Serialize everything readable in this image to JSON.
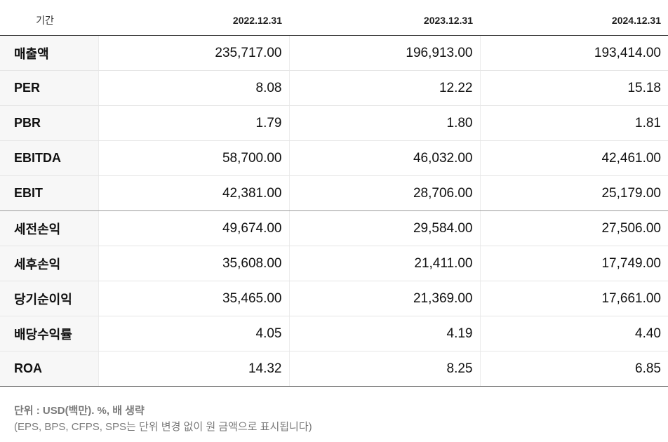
{
  "table": {
    "headers": [
      "기간",
      "2022.12.31",
      "2023.12.31",
      "2024.12.31"
    ],
    "rows": [
      {
        "label": "매출액",
        "values": [
          "235,717.00",
          "196,913.00",
          "193,414.00"
        ]
      },
      {
        "label": "PER",
        "values": [
          "8.08",
          "12.22",
          "15.18"
        ]
      },
      {
        "label": "PBR",
        "values": [
          "1.79",
          "1.80",
          "1.81"
        ]
      },
      {
        "label": "EBITDA",
        "values": [
          "58,700.00",
          "46,032.00",
          "42,461.00"
        ]
      },
      {
        "label": "EBIT",
        "values": [
          "42,381.00",
          "28,706.00",
          "25,179.00"
        ]
      },
      {
        "label": "세전손익",
        "values": [
          "49,674.00",
          "29,584.00",
          "27,506.00"
        ]
      },
      {
        "label": "세후손익",
        "values": [
          "35,608.00",
          "21,411.00",
          "17,749.00"
        ]
      },
      {
        "label": "당기순이익",
        "values": [
          "35,465.00",
          "21,369.00",
          "17,661.00"
        ]
      },
      {
        "label": "배당수익률",
        "values": [
          "4.05",
          "4.19",
          "4.40"
        ]
      },
      {
        "label": "ROA",
        "values": [
          "14.32",
          "8.25",
          "6.85"
        ]
      }
    ]
  },
  "notes": {
    "line1": "단위 : USD(백만). %, 배 생략",
    "line2": "(EPS, BPS, CFPS, SPS는 단위 변경 없이 원 금액으로 표시됩니다)"
  }
}
